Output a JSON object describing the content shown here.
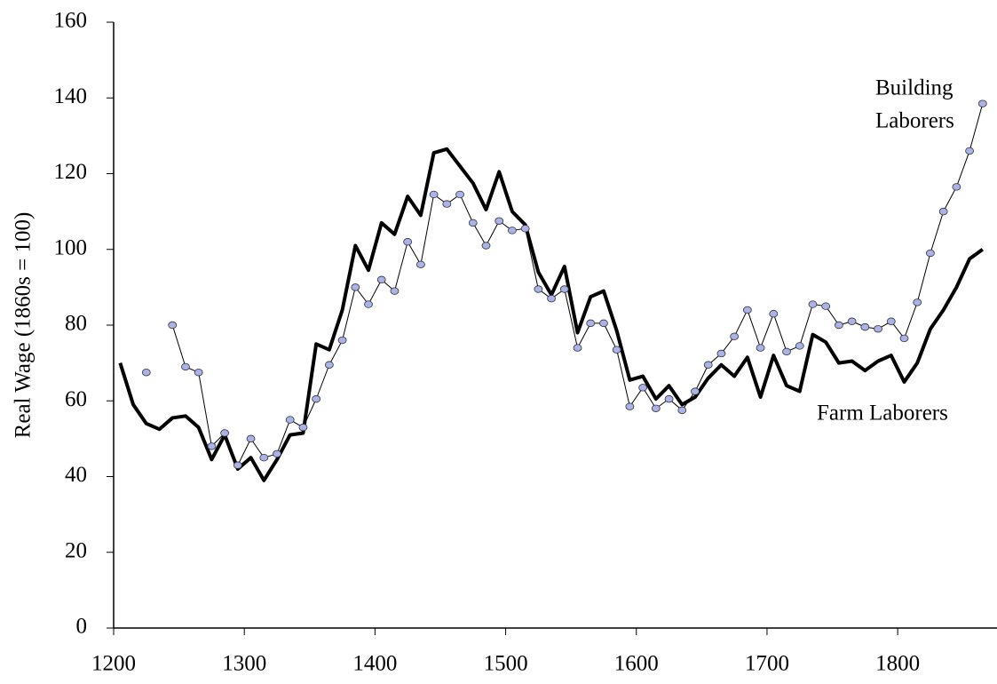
{
  "chart_data": {
    "type": "line",
    "y_label": "Real Wage (1860s = 100)",
    "annotations": [
      "Building",
      "Laborers",
      "Farm Laborers"
    ],
    "x": [
      1205,
      1215,
      1225,
      1235,
      1245,
      1255,
      1265,
      1275,
      1285,
      1295,
      1305,
      1315,
      1325,
      1335,
      1345,
      1355,
      1365,
      1375,
      1385,
      1395,
      1405,
      1415,
      1425,
      1435,
      1445,
      1455,
      1465,
      1475,
      1485,
      1495,
      1505,
      1515,
      1525,
      1535,
      1545,
      1555,
      1565,
      1575,
      1585,
      1595,
      1605,
      1615,
      1625,
      1635,
      1645,
      1655,
      1665,
      1675,
      1685,
      1695,
      1705,
      1715,
      1725,
      1735,
      1745,
      1755,
      1765,
      1775,
      1785,
      1795,
      1805,
      1815,
      1825,
      1835,
      1845,
      1855,
      1865
    ],
    "series": [
      {
        "name": "Farm Laborers",
        "color": "#000000",
        "markers": false,
        "values": [
          70,
          59,
          54,
          52.5,
          55.5,
          56,
          53,
          44.5,
          51,
          42,
          45,
          39,
          44.5,
          51,
          51.5,
          75,
          73.5,
          84,
          101,
          94.5,
          107,
          104,
          114,
          109,
          125.5,
          126.5,
          122,
          117.5,
          110.5,
          120.5,
          110,
          106.5,
          94,
          88,
          95.5,
          78,
          87.5,
          89,
          78.5,
          65.5,
          66.5,
          60.5,
          64,
          59,
          61,
          66,
          69.5,
          66.5,
          71.5,
          61,
          72,
          64,
          62.5,
          77.5,
          75.5,
          70,
          70.5,
          68,
          70.5,
          72,
          65,
          70,
          79,
          84,
          90,
          97.5,
          100
        ]
      },
      {
        "name": "Building Laborers",
        "color": "#aab2ea",
        "markers": true,
        "values": [
          null,
          null,
          67.5,
          null,
          80,
          69,
          67.5,
          48,
          51.5,
          43,
          50,
          45,
          46,
          55,
          53,
          60.5,
          69.5,
          76,
          90,
          85.5,
          92,
          89,
          102,
          96,
          114.5,
          112,
          114.5,
          107,
          101,
          107.5,
          105,
          105.5,
          89.5,
          87,
          89.5,
          74,
          80.5,
          80.5,
          73.5,
          58.5,
          63.5,
          58,
          60.5,
          57.5,
          62.5,
          69.5,
          72.5,
          77,
          84,
          74,
          83,
          73,
          74.5,
          85.5,
          85,
          80,
          81,
          79.5,
          79,
          81,
          76.5,
          86,
          99,
          110,
          116.5,
          126,
          138.5
        ]
      }
    ],
    "xlim": [
      1200,
      1876
    ],
    "xticks": [
      1200,
      1300,
      1400,
      1500,
      1600,
      1700,
      1800
    ],
    "ylim": [
      0,
      160
    ],
    "yticks": [
      0,
      20,
      40,
      60,
      80,
      100,
      120,
      140,
      160
    ]
  }
}
